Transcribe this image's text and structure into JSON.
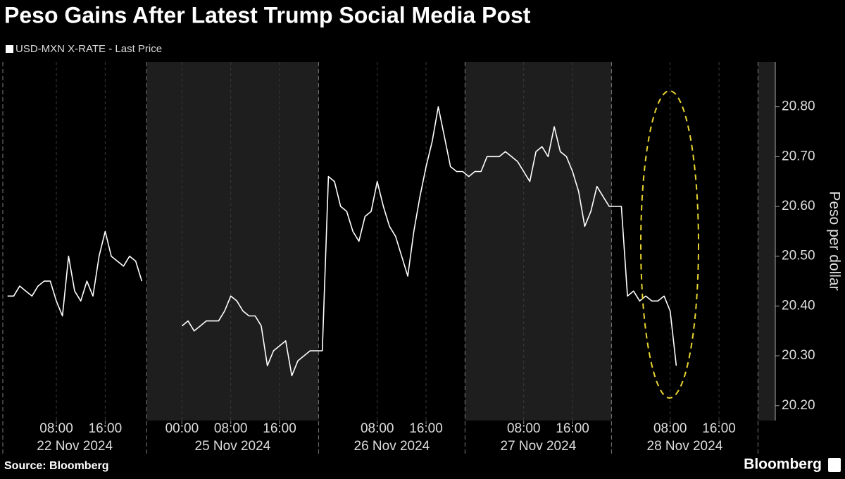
{
  "chart_data": {
    "type": "line",
    "title": "Peso Gains After Latest Trump Social Media Post",
    "y_label": "Peso per dollar",
    "source": "Source: Bloomberg",
    "brand": "Bloomberg",
    "grid": true,
    "x": [
      "2024-11-22 00:00",
      "2024-11-22 01:00",
      "2024-11-22 02:00",
      "2024-11-22 03:00",
      "2024-11-22 04:00",
      "2024-11-22 05:00",
      "2024-11-22 06:00",
      "2024-11-22 07:00",
      "2024-11-22 08:00",
      "2024-11-22 09:00",
      "2024-11-22 10:00",
      "2024-11-22 11:00",
      "2024-11-22 12:00",
      "2024-11-22 13:00",
      "2024-11-22 14:00",
      "2024-11-22 15:00",
      "2024-11-22 16:00",
      "2024-11-22 17:00",
      "2024-11-22 18:00",
      "2024-11-22 19:00",
      "2024-11-22 20:00",
      "2024-11-22 21:00",
      "2024-11-22 22:00",
      "2024-11-25 00:00",
      "2024-11-25 01:00",
      "2024-11-25 02:00",
      "2024-11-25 03:00",
      "2024-11-25 04:00",
      "2024-11-25 05:00",
      "2024-11-25 06:00",
      "2024-11-25 07:00",
      "2024-11-25 08:00",
      "2024-11-25 09:00",
      "2024-11-25 10:00",
      "2024-11-25 11:00",
      "2024-11-25 12:00",
      "2024-11-25 13:00",
      "2024-11-25 14:00",
      "2024-11-25 15:00",
      "2024-11-25 16:00",
      "2024-11-25 17:00",
      "2024-11-25 18:00",
      "2024-11-25 19:00",
      "2024-11-25 20:00",
      "2024-11-25 21:00",
      "2024-11-25 22:00",
      "2024-11-25 23:00",
      "2024-11-26 00:00",
      "2024-11-26 01:00",
      "2024-11-26 02:00",
      "2024-11-26 03:00",
      "2024-11-26 04:00",
      "2024-11-26 05:00",
      "2024-11-26 06:00",
      "2024-11-26 07:00",
      "2024-11-26 08:00",
      "2024-11-26 09:00",
      "2024-11-26 10:00",
      "2024-11-26 11:00",
      "2024-11-26 12:00",
      "2024-11-26 13:00",
      "2024-11-26 14:00",
      "2024-11-26 15:00",
      "2024-11-26 16:00",
      "2024-11-26 17:00",
      "2024-11-26 18:00",
      "2024-11-26 19:00",
      "2024-11-26 20:00",
      "2024-11-26 21:00",
      "2024-11-26 22:00",
      "2024-11-26 23:00",
      "2024-11-27 00:00",
      "2024-11-27 01:00",
      "2024-11-27 02:00",
      "2024-11-27 03:00",
      "2024-11-27 04:00",
      "2024-11-27 05:00",
      "2024-11-27 06:00",
      "2024-11-27 07:00",
      "2024-11-27 08:00",
      "2024-11-27 09:00",
      "2024-11-27 10:00",
      "2024-11-27 11:00",
      "2024-11-27 12:00",
      "2024-11-27 13:00",
      "2024-11-27 14:00",
      "2024-11-27 15:00",
      "2024-11-27 16:00",
      "2024-11-27 17:00",
      "2024-11-27 18:00",
      "2024-11-27 19:00",
      "2024-11-27 20:00",
      "2024-11-27 21:00",
      "2024-11-27 22:00",
      "2024-11-27 23:00",
      "2024-11-28 00:00",
      "2024-11-28 01:00",
      "2024-11-28 02:00",
      "2024-11-28 03:00",
      "2024-11-28 04:00",
      "2024-11-28 05:00",
      "2024-11-28 06:00",
      "2024-11-28 07:00",
      "2024-11-28 08:00",
      "2024-11-28 09:00"
    ],
    "series": [
      {
        "name": "USD-MXN X-RATE - Last Price",
        "color": "#ffffff",
        "values": [
          20.42,
          20.42,
          20.44,
          20.43,
          20.42,
          20.44,
          20.45,
          20.45,
          20.41,
          20.38,
          20.5,
          20.43,
          20.41,
          20.45,
          20.42,
          20.5,
          20.55,
          20.5,
          20.49,
          20.48,
          20.5,
          20.49,
          20.45,
          20.36,
          20.37,
          20.35,
          20.36,
          20.37,
          20.37,
          20.37,
          20.39,
          20.42,
          20.41,
          20.39,
          20.38,
          20.38,
          20.36,
          20.28,
          20.31,
          20.32,
          20.33,
          20.26,
          20.29,
          20.3,
          20.31,
          20.31,
          20.31,
          20.66,
          20.65,
          20.6,
          20.59,
          20.55,
          20.53,
          20.58,
          20.59,
          20.65,
          20.6,
          20.56,
          20.54,
          20.5,
          20.46,
          20.55,
          20.62,
          20.68,
          20.73,
          20.8,
          20.74,
          20.68,
          20.67,
          20.67,
          20.66,
          20.67,
          20.67,
          20.7,
          20.7,
          20.7,
          20.71,
          20.7,
          20.69,
          20.67,
          20.65,
          20.71,
          20.72,
          20.7,
          20.76,
          20.71,
          20.7,
          20.67,
          20.63,
          20.56,
          20.59,
          20.64,
          20.62,
          20.6,
          20.6,
          20.6,
          20.42,
          20.43,
          20.41,
          20.42,
          20.41,
          20.41,
          20.42,
          20.39,
          20.28
        ]
      }
    ],
    "ylim": [
      20.17,
      20.89
    ],
    "yticks": [
      {
        "value": 20.2,
        "label": "20.20"
      },
      {
        "value": 20.3,
        "label": "20.30"
      },
      {
        "value": 20.4,
        "label": "20.40"
      },
      {
        "value": 20.5,
        "label": "20.50"
      },
      {
        "value": 20.6,
        "label": "20.60"
      },
      {
        "value": 20.7,
        "label": "20.70"
      },
      {
        "value": 20.8,
        "label": "20.80"
      }
    ],
    "xticks": [
      {
        "value": "2024-11-22 08:00",
        "label": "08:00"
      },
      {
        "value": "2024-11-22 16:00",
        "label": "16:00"
      },
      {
        "value": "2024-11-25 00:00",
        "label": "00:00"
      },
      {
        "value": "2024-11-25 08:00",
        "label": "08:00"
      },
      {
        "value": "2024-11-25 16:00",
        "label": "16:00"
      },
      {
        "value": "2024-11-26 08:00",
        "label": "08:00"
      },
      {
        "value": "2024-11-26 16:00",
        "label": "16:00"
      },
      {
        "value": "2024-11-27 08:00",
        "label": "08:00"
      },
      {
        "value": "2024-11-27 16:00",
        "label": "16:00"
      },
      {
        "value": "2024-11-28 08:00",
        "label": "08:00"
      },
      {
        "value": "2024-11-28 16:00",
        "label": "16:00"
      }
    ],
    "x_date_labels": [
      {
        "value": "2024-11-22",
        "label": "22 Nov 2024"
      },
      {
        "value": "2024-11-25",
        "label": "25 Nov 2024"
      },
      {
        "value": "2024-11-26",
        "label": "26 Nov 2024"
      },
      {
        "value": "2024-11-27",
        "label": "27 Nov 2024"
      },
      {
        "value": "2024-11-28",
        "label": "28 Nov 2024"
      }
    ]
  }
}
